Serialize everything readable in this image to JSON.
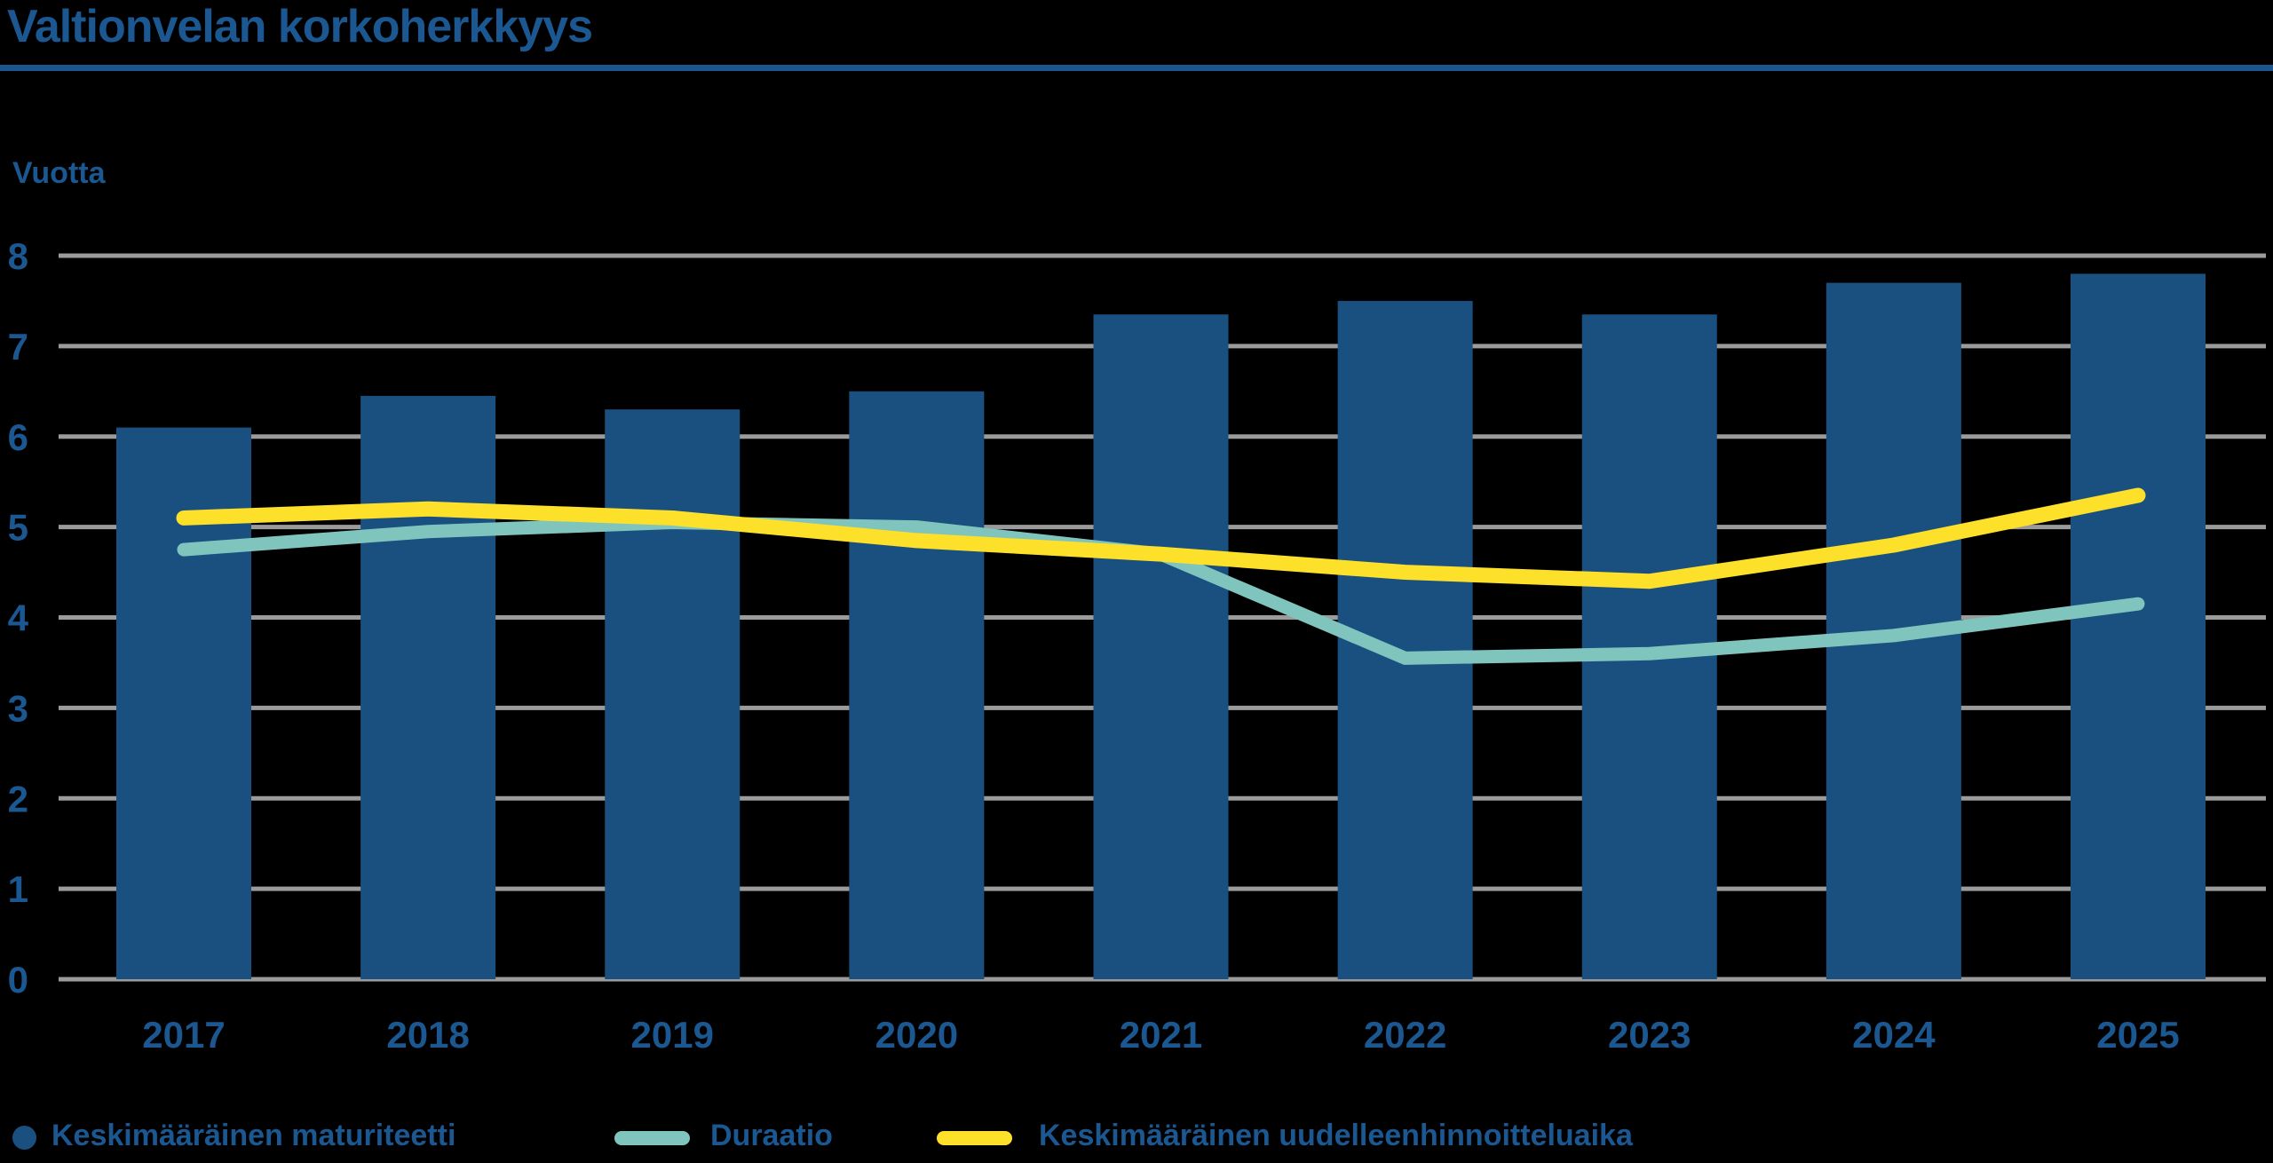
{
  "colors": {
    "text_blue": "#1B5791",
    "rule_blue": "#1A5590",
    "bar_blue": "#1A5080",
    "teal": "#7FC5BE",
    "yellow": "#FCE029",
    "gridline": "#9B9B9B",
    "background": "#000000"
  },
  "chart_data": {
    "type": "bar+line",
    "title": "Valtionvelan korkoherkkyys",
    "ylabel": "Vuotta",
    "xlabel": "",
    "ylim": [
      0,
      8
    ],
    "yticks": [
      0,
      1,
      2,
      3,
      4,
      5,
      6,
      7,
      8
    ],
    "grid": true,
    "legend_position": "bottom",
    "categories": [
      "2017",
      "2018",
      "2019",
      "2020",
      "2021",
      "2022",
      "2023",
      "2024",
      "2025"
    ],
    "series": [
      {
        "name": "Keskimääräinen maturiteetti",
        "type": "bar",
        "color": "#1A5080",
        "values": [
          6.1,
          6.45,
          6.3,
          6.5,
          7.35,
          7.5,
          7.35,
          7.7,
          7.8
        ]
      },
      {
        "name": "Duraatio",
        "type": "line",
        "color": "#7FC5BE",
        "values": [
          4.75,
          4.95,
          5.05,
          5.0,
          4.7,
          3.55,
          3.6,
          3.8,
          4.15
        ]
      },
      {
        "name": "Keskimääräinen uudelleenhinnoitteluaika",
        "type": "line",
        "color": "#FCE029",
        "values": [
          5.1,
          5.2,
          5.1,
          4.85,
          4.7,
          4.5,
          4.4,
          4.8,
          5.35
        ]
      }
    ]
  }
}
